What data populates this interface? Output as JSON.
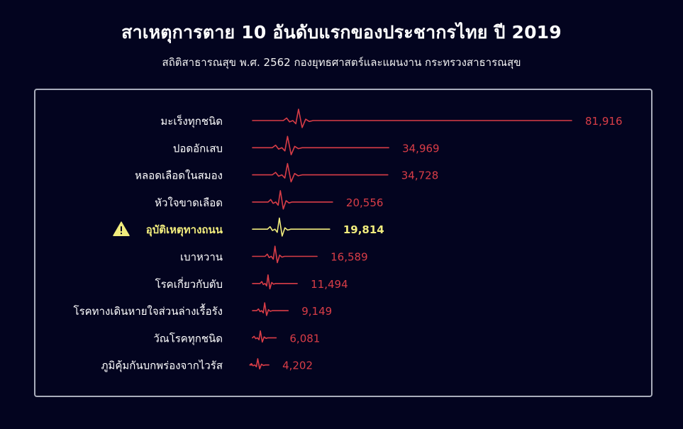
{
  "chart_data": {
    "type": "bar",
    "title": "สาเหตุการตาย 10 อันดับแรกของประชากรไทย ปี 2019",
    "subtitle": "สถิติสาธารณสุข พ.ศ. 2562 กองยุทธศาสตร์และแผนงาน กระทรวงสาธารณสุข",
    "categories": [
      "มะเร็งทุกชนิด",
      "ปอดอักเสบ",
      "หลอดเลือดในสมอง",
      "หัวใจขาดเลือด",
      "อุบัติเหตุทางถนน",
      "เบาหวาน",
      "โรคเกี่ยวกับตับ",
      "โรคทางเดินหายใจส่วนล่างเรื้อรัง",
      "วัณโรคทุกชนิด",
      "ภูมิคุ้มกันบกพร่องจากไวรัส"
    ],
    "values": [
      81916,
      34969,
      34728,
      20556,
      19814,
      16589,
      11494,
      9149,
      6081,
      4202
    ],
    "value_labels": [
      "81,916",
      "34,969",
      "34,728",
      "20,556",
      "19,814",
      "16,589",
      "11,494",
      "9,149",
      "6,081",
      "4,202"
    ],
    "highlight_category": "อุบัติเหตุทางถนน",
    "highlight_icon": "warning-icon",
    "colors": {
      "background": "#03041f",
      "series": "#d93d47",
      "highlight": "#f1ec7d",
      "label": "#ffffff",
      "panel_border": "#a9adbb"
    }
  }
}
